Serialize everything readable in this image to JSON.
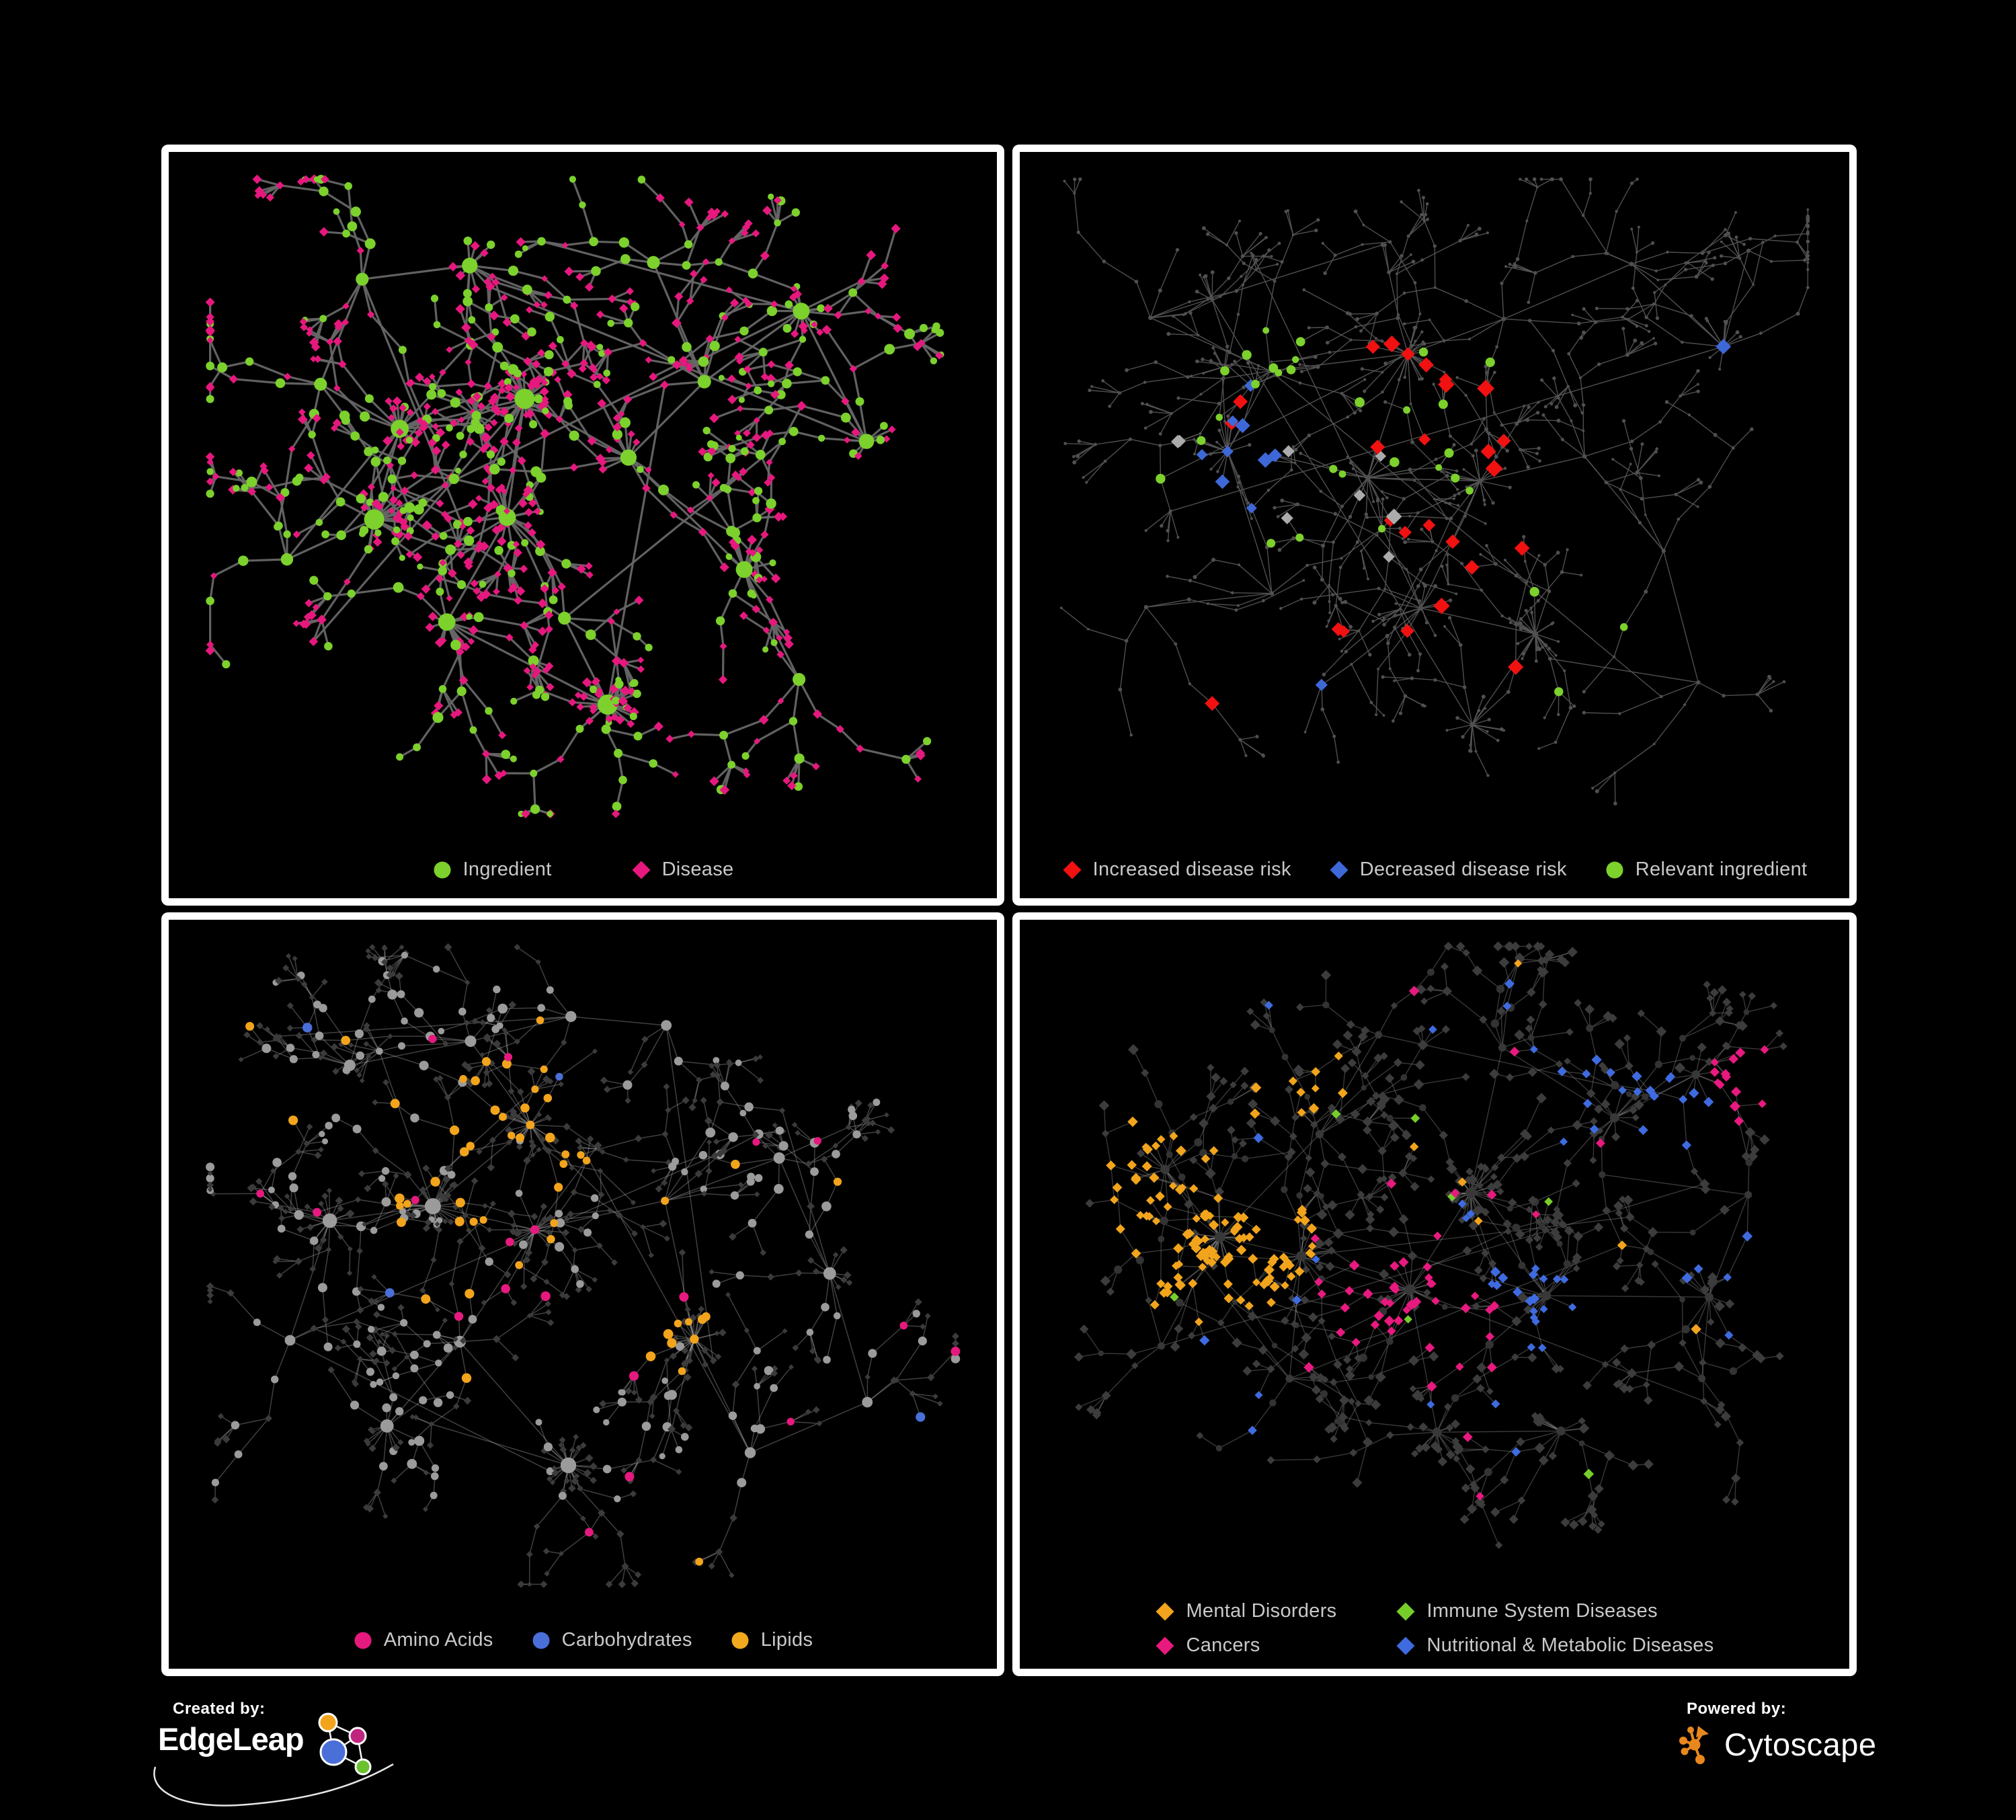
{
  "branding": {
    "created_by": "Created by:",
    "edgeleap": "EdgeLeap",
    "powered_by": "Powered by:",
    "cytoscape": "Cytoscape",
    "cytoscape_orange": "#E8871E",
    "edgeleap_orange": "#F2A41C",
    "edgeleap_magenta": "#C0257E",
    "edgeleap_blue": "#4A6FD8",
    "edgeleap_green": "#6CC12F"
  },
  "figure": {
    "background": "#000000",
    "panel_border": "#FFFFFF",
    "legend_text_color": "#C9C9C9"
  },
  "panels": [
    {
      "id": "ingredient-disease",
      "legend": {
        "items": [
          {
            "label": "Ingredient",
            "shape": "circle",
            "color": "#7CD12C"
          },
          {
            "label": "Disease",
            "shape": "diamond",
            "color": "#E6187E"
          }
        ]
      },
      "network": {
        "seed": 42,
        "step": 0.04,
        "extra_links": 10,
        "margins": [
          0.05,
          0.04,
          0.05,
          0.03
        ],
        "edge": {
          "color": "#666666",
          "w": 3.2,
          "o": 0.95
        },
        "nodes": {
          "hub": {
            "shape": "circle",
            "color": "#7CD12C",
            "r": [
              8,
              15
            ]
          },
          "mid": {
            "mix": [
              [
                "circle",
                "#7CD12C",
                6.5,
                0.52
              ],
              [
                "diamond",
                "#E6187E",
                6,
                0.48
              ]
            ]
          },
          "leaf": {
            "mix": [
              [
                "diamond",
                "#E6187E",
                6,
                0.76
              ],
              [
                "circle",
                "#7CD12C",
                5.5,
                0.24
              ]
            ]
          }
        },
        "clusters": [
          [
            0.2,
            0.16,
            4,
            0
          ],
          [
            0.36,
            0.13,
            5,
            8
          ],
          [
            0.14,
            0.32,
            4,
            0
          ],
          [
            0.27,
            0.38,
            7,
            12
          ],
          [
            0.42,
            0.34,
            8,
            24
          ],
          [
            0.24,
            0.52,
            8,
            18
          ],
          [
            0.4,
            0.55,
            7,
            10
          ],
          [
            0.55,
            0.46,
            6,
            8
          ],
          [
            0.33,
            0.7,
            6,
            12
          ],
          [
            0.55,
            0.83,
            3,
            28
          ],
          [
            0.66,
            0.3,
            5,
            0
          ],
          [
            0.8,
            0.22,
            5,
            12
          ],
          [
            0.87,
            0.43,
            4,
            8
          ],
          [
            0.7,
            0.62,
            5,
            12
          ],
          [
            0.78,
            0.78,
            4,
            0
          ],
          [
            0.12,
            0.62,
            3,
            0
          ],
          [
            0.6,
            0.12,
            4,
            0
          ],
          [
            0.47,
            0.7,
            4,
            0
          ]
        ]
      }
    },
    {
      "id": "disease-risk",
      "legend": {
        "items": [
          {
            "label": "Increased disease risk",
            "shape": "diamond",
            "color": "#F21111"
          },
          {
            "label": "Decreased disease risk",
            "shape": "diamond",
            "color": "#3E68D8"
          },
          {
            "label": "Relevant ingredient",
            "shape": "circle",
            "color": "#7CD12C"
          }
        ]
      },
      "network": {
        "seed": 7,
        "step": 0.042,
        "extra_links": 8,
        "margins": [
          0.05,
          0.04,
          0.05,
          0.03
        ],
        "edge": {
          "color": "#585858",
          "w": 1.4,
          "o": 0.9
        },
        "nodes": {
          "hub": {
            "shape": "circle",
            "color": "#505050",
            "r": [
              2.8,
              4.4
            ]
          },
          "mid": {
            "mix": [
              [
                "circle",
                "#505050",
                2.4,
                1
              ]
            ]
          },
          "leaf": {
            "mix": [
              [
                "circle",
                "#505050",
                2.4,
                1
              ]
            ]
          }
        },
        "clusters": [
          [
            0.14,
            0.24,
            5,
            0
          ],
          [
            0.3,
            0.28,
            6,
            0
          ],
          [
            0.45,
            0.3,
            8,
            18
          ],
          [
            0.6,
            0.24,
            5,
            0
          ],
          [
            0.75,
            0.14,
            5,
            0
          ],
          [
            0.88,
            0.26,
            4,
            8
          ],
          [
            0.22,
            0.45,
            7,
            12
          ],
          [
            0.4,
            0.48,
            8,
            14
          ],
          [
            0.55,
            0.5,
            7,
            12
          ],
          [
            0.68,
            0.44,
            5,
            0
          ],
          [
            0.3,
            0.65,
            5,
            0
          ],
          [
            0.48,
            0.7,
            5,
            8
          ],
          [
            0.64,
            0.72,
            5,
            22
          ],
          [
            0.8,
            0.6,
            4,
            0
          ],
          [
            0.85,
            0.8,
            3,
            0
          ],
          [
            0.12,
            0.68,
            3,
            0
          ],
          [
            0.55,
            0.88,
            3,
            14
          ],
          [
            0.92,
            0.12,
            3,
            0
          ]
        ],
        "highlights": [
          {
            "count": 26,
            "shape": "diamond",
            "color": "#F21111",
            "r": 11,
            "regions": [
              [
                0.47,
                0.4,
                0.16
              ],
              [
                0.58,
                0.52,
                0.12
              ],
              [
                0.3,
                0.4,
                0.09
              ],
              [
                0.68,
                0.6,
                0.1
              ],
              [
                0.52,
                0.3,
                0.08
              ],
              [
                0.45,
                0.68,
                0.1
              ],
              [
                0.66,
                0.82,
                0.08
              ],
              [
                0.25,
                0.78,
                0.08
              ]
            ]
          },
          {
            "count": 11,
            "shape": "diamond",
            "color": "#3E68D8",
            "r": 10,
            "regions": [
              [
                0.24,
                0.46,
                0.1
              ],
              [
                0.93,
                0.27,
                0.06
              ],
              [
                0.29,
                0.38,
                0.07
              ],
              [
                0.38,
                0.8,
                0.06
              ]
            ]
          },
          {
            "count": 8,
            "shape": "diamond",
            "color": "#ABABAB",
            "r": 10,
            "regions": [
              [
                0.31,
                0.44,
                0.12
              ],
              [
                0.54,
                0.55,
                0.12
              ],
              [
                0.2,
                0.35,
                0.08
              ]
            ]
          },
          {
            "count": 30,
            "shape": "circle",
            "color": "#7CD12C",
            "r": 6.2,
            "regions": [
              [
                0.35,
                0.4,
                0.2
              ],
              [
                0.55,
                0.45,
                0.18
              ],
              [
                0.2,
                0.3,
                0.12
              ],
              [
                0.6,
                0.7,
                0.15
              ],
              [
                0.15,
                0.55,
                0.1
              ],
              [
                0.78,
                0.75,
                0.1
              ]
            ]
          }
        ]
      }
    },
    {
      "id": "macronutrients",
      "legend": {
        "items": [
          {
            "label": "Amino Acids",
            "shape": "circle",
            "color": "#E6197F"
          },
          {
            "label": "Carbohydrates",
            "shape": "circle",
            "color": "#4A6FD8"
          },
          {
            "label": "Lipids",
            "shape": "circle",
            "color": "#F2A91E"
          }
        ]
      },
      "network": {
        "seed": 1337,
        "step": 0.04,
        "extra_links": 10,
        "margins": [
          0.05,
          0.04,
          0.05,
          0.03
        ],
        "edge": {
          "color": "#A8A8A8",
          "w": 1.5,
          "o": 0.38
        },
        "nodes": {
          "hub": {
            "shape": "circle",
            "color": "#9B9B9B",
            "r": [
              7,
              12
            ]
          },
          "mid": {
            "mix": [
              [
                "circle",
                "#9B9B9B",
                6,
                0.55
              ],
              [
                "diamond",
                "#3B3B3B",
                4.8,
                0.45
              ]
            ]
          },
          "leaf": {
            "mix": [
              [
                "diamond",
                "#3B3B3B",
                4.8,
                0.8
              ],
              [
                "circle",
                "#9B9B9B",
                5.5,
                0.2
              ]
            ]
          }
        },
        "clusters": [
          [
            0.2,
            0.2,
            5,
            0
          ],
          [
            0.35,
            0.14,
            5,
            0
          ],
          [
            0.5,
            0.11,
            4,
            0
          ],
          [
            0.42,
            0.28,
            8,
            20
          ],
          [
            0.28,
            0.41,
            8,
            26
          ],
          [
            0.16,
            0.44,
            6,
            14
          ],
          [
            0.45,
            0.46,
            8,
            16
          ],
          [
            0.6,
            0.38,
            5,
            0
          ],
          [
            0.35,
            0.6,
            6,
            0
          ],
          [
            0.25,
            0.76,
            5,
            10
          ],
          [
            0.48,
            0.81,
            4,
            24
          ],
          [
            0.63,
            0.62,
            5,
            30
          ],
          [
            0.75,
            0.31,
            5,
            0
          ],
          [
            0.85,
            0.5,
            4,
            8
          ],
          [
            0.72,
            0.8,
            4,
            0
          ],
          [
            0.88,
            0.72,
            3,
            0
          ],
          [
            0.12,
            0.62,
            3,
            0
          ],
          [
            0.62,
            0.14,
            3,
            0
          ]
        ],
        "overrides": [
          {
            "shape": "circle",
            "color": "#F2A41C",
            "r": 6.5,
            "regions": [
              [
                0.42,
                0.27,
                0.13,
                0.8
              ],
              [
                0.63,
                0.62,
                0.06,
                0.9
              ],
              [
                0.35,
                0.45,
                0.12,
                0.3
              ],
              [
                0.5,
                0.5,
                0.62,
                0.055
              ]
            ]
          },
          {
            "shape": "circle",
            "color": "#4A6FD8",
            "r": 6.5,
            "regions": [
              [
                0.49,
                0.26,
                0.07,
                0.7
              ],
              [
                0.5,
                0.5,
                0.62,
                0.022
              ]
            ]
          },
          {
            "shape": "circle",
            "color": "#E6197F",
            "r": 6.5,
            "regions": [
              [
                0.5,
                0.5,
                0.62,
                0.05
              ]
            ]
          }
        ]
      }
    },
    {
      "id": "disease-categories",
      "legend": {
        "items": [
          {
            "label": "Mental Disorders",
            "shape": "diamond",
            "color": "#F2A41C"
          },
          {
            "label": "Immune System Diseases",
            "shape": "diamond",
            "color": "#76CE2B"
          },
          {
            "label": "Cancers",
            "shape": "diamond",
            "color": "#E8197F"
          },
          {
            "label": "Nutritional & Metabolic Diseases",
            "shape": "diamond",
            "color": "#3F6BE0"
          }
        ]
      },
      "network": {
        "seed": 2024,
        "step": 0.04,
        "extra_links": 8,
        "margins": [
          0.05,
          0.04,
          0.05,
          0.03
        ],
        "edge": {
          "color": "#A0A0A0",
          "w": 1.4,
          "o": 0.35
        },
        "nodes": {
          "hub": {
            "shape": "circle",
            "color": "#383838",
            "r": [
              5,
              8
            ]
          },
          "mid": {
            "mix": [
              [
                "diamond",
                "#3C3C3C",
                6.5,
                0.8
              ],
              [
                "circle",
                "#333333",
                5,
                0.2
              ]
            ]
          },
          "leaf": {
            "mix": [
              [
                "diamond",
                "#3C3C3C",
                6.5,
                1
              ]
            ]
          }
        },
        "clusters": [
          [
            0.2,
            0.46,
            7,
            34
          ],
          [
            0.12,
            0.37,
            5,
            12
          ],
          [
            0.33,
            0.28,
            6,
            0
          ],
          [
            0.33,
            0.5,
            7,
            14
          ],
          [
            0.46,
            0.56,
            8,
            18
          ],
          [
            0.55,
            0.41,
            8,
            26
          ],
          [
            0.66,
            0.56,
            6,
            12
          ],
          [
            0.6,
            0.18,
            5,
            0
          ],
          [
            0.76,
            0.3,
            5,
            10
          ],
          [
            0.86,
            0.2,
            4,
            8
          ],
          [
            0.88,
            0.55,
            4,
            8
          ],
          [
            0.3,
            0.71,
            5,
            0
          ],
          [
            0.5,
            0.79,
            5,
            12
          ],
          [
            0.68,
            0.78,
            4,
            10
          ],
          [
            0.84,
            0.7,
            3,
            0
          ],
          [
            0.12,
            0.65,
            3,
            0
          ],
          [
            0.42,
            0.12,
            3,
            0
          ],
          [
            0.92,
            0.4,
            3,
            0
          ]
        ],
        "overrides": [
          {
            "shape": "diamond",
            "color": "#F2A41C",
            "r": 7,
            "regions": [
              [
                0.19,
                0.46,
                0.15,
                0.9
              ],
              [
                0.12,
                0.37,
                0.09,
                0.7
              ],
              [
                0.33,
                0.21,
                0.06,
                0.5
              ],
              [
                0.5,
                0.5,
                0.62,
                0.02
              ]
            ]
          },
          {
            "shape": "diamond",
            "color": "#E8197F",
            "r": 7,
            "regions": [
              [
                0.45,
                0.56,
                0.11,
                0.65
              ],
              [
                0.53,
                0.64,
                0.08,
                0.5
              ],
              [
                0.92,
                0.22,
                0.06,
                0.8
              ],
              [
                0.5,
                0.5,
                0.62,
                0.03
              ]
            ]
          },
          {
            "shape": "diamond",
            "color": "#3F6BE0",
            "r": 7,
            "regions": [
              [
                0.66,
                0.57,
                0.09,
                0.6
              ],
              [
                0.78,
                0.3,
                0.11,
                0.45
              ],
              [
                0.6,
                0.16,
                0.12,
                0.4
              ],
              [
                0.87,
                0.45,
                0.08,
                0.5
              ],
              [
                0.25,
                0.78,
                0.07,
                0.3
              ],
              [
                0.5,
                0.5,
                0.62,
                0.035
              ]
            ]
          },
          {
            "shape": "diamond",
            "color": "#76CE2B",
            "r": 7,
            "regions": [
              [
                0.5,
                0.5,
                0.62,
                0.015
              ]
            ]
          }
        ]
      }
    }
  ]
}
